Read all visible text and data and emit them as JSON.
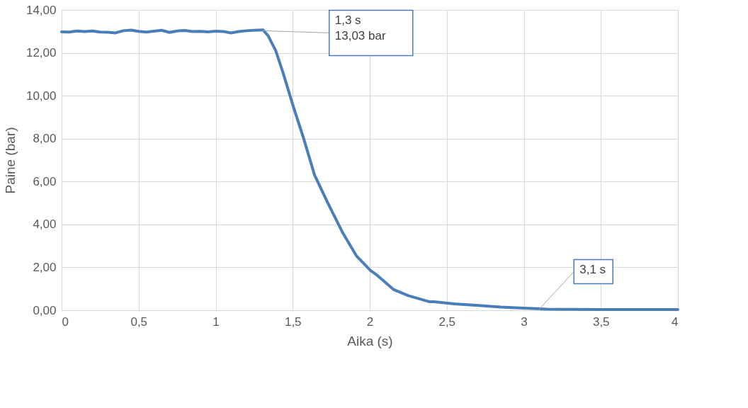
{
  "chart_data": {
    "type": "line",
    "xlabel": "Aika (s)",
    "ylabel": "Paine (bar)",
    "x": [
      0,
      0.05,
      0.1,
      0.15,
      0.2,
      0.25,
      0.3,
      0.35,
      0.4,
      0.45,
      0.5,
      0.55,
      0.6,
      0.65,
      0.7,
      0.75,
      0.8,
      0.85,
      0.9,
      0.95,
      1.0,
      1.05,
      1.1,
      1.15,
      1.2,
      1.25,
      1.307,
      1.34,
      1.39,
      1.436,
      1.505,
      1.569,
      1.642,
      1.729,
      1.821,
      1.913,
      2.005,
      2.05,
      2.156,
      2.25,
      2.385,
      2.417,
      2.55,
      2.69,
      2.85,
      3.0,
      3.15,
      3.3,
      3.5,
      3.7,
      3.85,
      4.0
    ],
    "series": [
      {
        "color": "#4a7ebb",
        "values": [
          12.98,
          12.97,
          13.02,
          12.99,
          13.02,
          12.97,
          12.96,
          12.93,
          13.03,
          13.06,
          13.0,
          12.97,
          13.01,
          13.05,
          12.95,
          13.02,
          13.04,
          12.99,
          13.0,
          12.98,
          13.01,
          12.99,
          12.93,
          12.99,
          13.03,
          13.05,
          13.07,
          12.8,
          12.1,
          11.1,
          9.47,
          8.05,
          6.3,
          4.98,
          3.66,
          2.54,
          1.85,
          1.62,
          0.96,
          0.68,
          0.4,
          0.4,
          0.3,
          0.23,
          0.15,
          0.1,
          0.05,
          0.04,
          0.03,
          0.03,
          0.03,
          0.03
        ]
      }
    ],
    "xlim": [
      0,
      4
    ],
    "xticks": [
      0,
      {
        "value": 0.5,
        "label": "0,5"
      },
      1,
      {
        "value": 1.5,
        "label": "1,5"
      },
      2,
      {
        "value": 2.5,
        "label": "2,5"
      },
      3,
      {
        "value": 3.5,
        "label": "3,5"
      },
      4
    ],
    "ylim": [
      0,
      14
    ],
    "yticks": [
      {
        "value": 0,
        "label": "0,00"
      },
      {
        "value": 2,
        "label": "2,00"
      },
      {
        "value": 4,
        "label": "4,00"
      },
      {
        "value": 6,
        "label": "6,00"
      },
      {
        "value": 8,
        "label": "8,00"
      },
      {
        "value": 10,
        "label": "10,00"
      },
      {
        "value": 12,
        "label": "12,00"
      },
      {
        "value": 14,
        "label": "14,00"
      }
    ],
    "grid": true,
    "marker": "none",
    "line_style": "solid",
    "annotations": [
      {
        "text": "1,3 s\n13,03 bar",
        "x": 1.3,
        "y": 13.03
      },
      {
        "text": "3,1 s",
        "x": 3.1,
        "y": 0.05
      }
    ]
  }
}
